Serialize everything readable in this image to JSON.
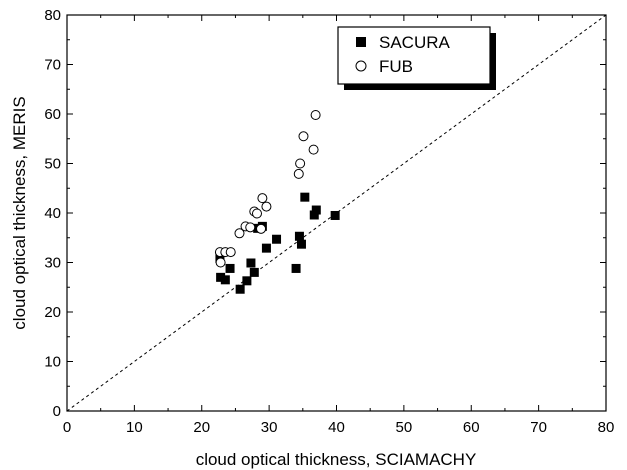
{
  "chart_data": {
    "type": "scatter",
    "xlabel": "cloud optical thickness, SCIAMACHY",
    "ylabel": "cloud optical thickness, MERIS",
    "xlim": [
      0,
      80
    ],
    "ylim": [
      0,
      80
    ],
    "x_ticks": [
      0,
      10,
      20,
      30,
      40,
      50,
      60,
      70,
      80
    ],
    "y_ticks": [
      0,
      10,
      20,
      30,
      40,
      50,
      60,
      70,
      80
    ],
    "x_tick_labels": [
      "0",
      "10",
      "20",
      "30",
      "40",
      "50",
      "60",
      "70",
      "80"
    ],
    "y_tick_labels": [
      "0",
      "10",
      "20",
      "30",
      "40",
      "50",
      "60",
      "70",
      "80"
    ],
    "grid": false,
    "legend_position": "top-right",
    "reference_line": {
      "style": "dashed",
      "from": [
        0,
        0
      ],
      "to": [
        80,
        80
      ]
    },
    "series": [
      {
        "name": "SACURA",
        "marker": "filled-square",
        "color": "#000000",
        "points": [
          [
            22.7,
            30.8
          ],
          [
            22.8,
            27.0
          ],
          [
            23.5,
            26.5
          ],
          [
            24.2,
            28.8
          ],
          [
            25.7,
            24.6
          ],
          [
            26.7,
            26.3
          ],
          [
            27.3,
            29.9
          ],
          [
            27.8,
            28.0
          ],
          [
            28.3,
            36.9
          ],
          [
            29.0,
            37.3
          ],
          [
            29.6,
            32.9
          ],
          [
            31.1,
            34.7
          ],
          [
            34.0,
            28.8
          ],
          [
            34.5,
            35.3
          ],
          [
            34.8,
            33.7
          ],
          [
            35.3,
            43.2
          ],
          [
            36.7,
            39.6
          ],
          [
            37.0,
            40.6
          ],
          [
            39.8,
            39.5
          ]
        ]
      },
      {
        "name": "FUB",
        "marker": "open-circle",
        "color": "#000000",
        "points": [
          [
            22.7,
            32.1
          ],
          [
            22.8,
            30.0
          ],
          [
            23.5,
            32.1
          ],
          [
            24.3,
            32.1
          ],
          [
            25.6,
            35.9
          ],
          [
            26.5,
            37.3
          ],
          [
            27.2,
            37.1
          ],
          [
            27.8,
            40.3
          ],
          [
            28.2,
            39.9
          ],
          [
            28.8,
            36.8
          ],
          [
            29.0,
            43.0
          ],
          [
            29.6,
            41.3
          ],
          [
            34.4,
            47.9
          ],
          [
            34.6,
            50.0
          ],
          [
            35.1,
            55.5
          ],
          [
            36.6,
            52.8
          ],
          [
            36.9,
            59.8
          ]
        ]
      }
    ]
  }
}
